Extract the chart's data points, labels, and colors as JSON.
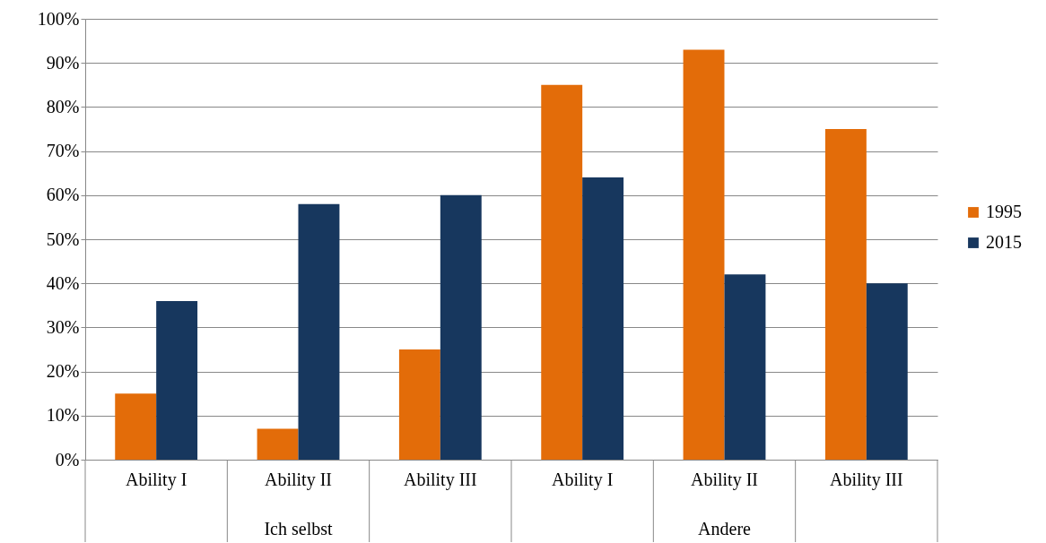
{
  "chart_data": {
    "type": "bar",
    "categories": [
      "Ability I",
      "Ability II",
      "Ability III",
      "Ability I",
      "Ability II",
      "Ability III"
    ],
    "series": [
      {
        "name": "1995",
        "color": "#e36c09",
        "values": [
          15,
          7,
          25,
          85,
          93,
          75
        ]
      },
      {
        "name": "2015",
        "color": "#17375e",
        "values": [
          36,
          58,
          60,
          64,
          42,
          40
        ]
      }
    ],
    "ylim": [
      0,
      100
    ],
    "yticks": [
      {
        "value": 0,
        "label": "0%"
      },
      {
        "value": 10,
        "label": "10%"
      },
      {
        "value": 20,
        "label": "20%"
      },
      {
        "value": 30,
        "label": "30%"
      },
      {
        "value": 40,
        "label": "40%"
      },
      {
        "value": 50,
        "label": "50%"
      },
      {
        "value": 60,
        "label": "60%"
      },
      {
        "value": 70,
        "label": "70%"
      },
      {
        "value": 80,
        "label": "80%"
      },
      {
        "value": 90,
        "label": "90%"
      },
      {
        "value": 100,
        "label": "100%"
      }
    ],
    "annotations": [
      "Ich selbst",
      "Andere"
    ],
    "grid": "y",
    "legend": "right"
  }
}
